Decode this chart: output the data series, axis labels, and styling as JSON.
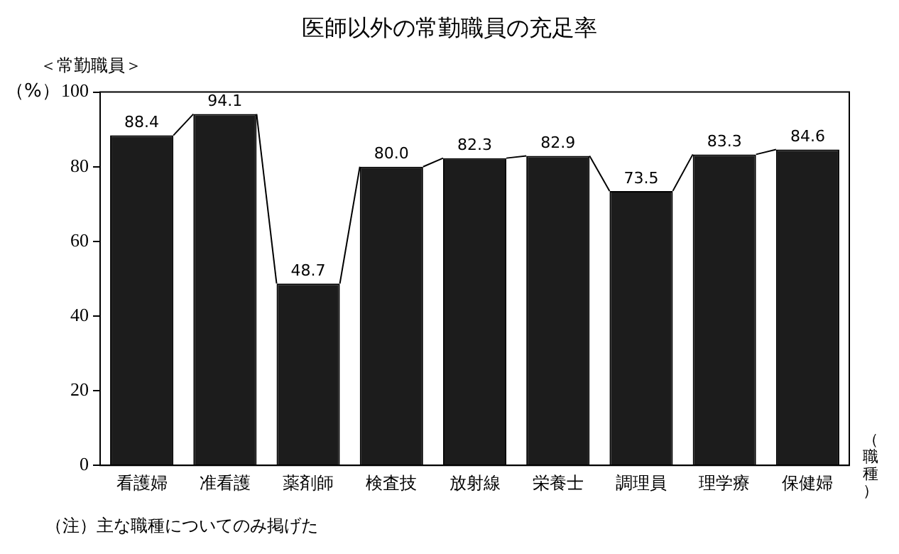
{
  "chart_data": {
    "type": "bar",
    "title": "医師以外の常勤職員の充足率",
    "subtitle": "＜常勤職員＞",
    "ylabel": "（%）",
    "xlabel": "（職種）",
    "categories": [
      "看護婦",
      "准看護",
      "薬剤師",
      "検査技",
      "放射線",
      "栄養士",
      "調理員",
      "理学療",
      "保健婦"
    ],
    "values": [
      88.4,
      94.1,
      48.7,
      80.0,
      82.3,
      82.9,
      73.5,
      83.3,
      84.6
    ],
    "value_labels": [
      "88.4",
      "94.1",
      "48.7",
      "80.0",
      "82.3",
      "82.9",
      "73.5",
      "83.3",
      "84.6"
    ],
    "color": "#1c1c1c",
    "ylim": [
      0,
      100
    ],
    "yticks": [
      0,
      20,
      40,
      60,
      80,
      100
    ],
    "grid": false,
    "legend": false,
    "annotations": [
      "（注）主な職種についてのみ掲げた"
    ]
  }
}
